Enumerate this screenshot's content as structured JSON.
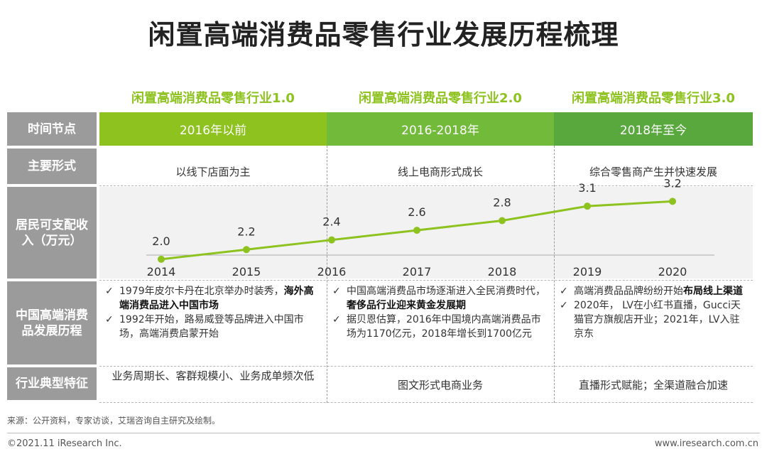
{
  "title": "闲置高端消费品零售行业发展历程梳理",
  "eras": [
    {
      "label": "闲置高端消费品零售行业1.0",
      "period": "2016年以前",
      "form": "以线下店面为主",
      "feature": "业务周期长、客群规模小、业务成单频次低"
    },
    {
      "label": "闲置高端消费品零售行业2.0",
      "period": "2016-2018年",
      "form": "线上电商形式成长",
      "feature": "图文形式电商业务"
    },
    {
      "label": "闲置高端消费品零售行业3.0",
      "period": "2018年至今",
      "form": "综合零售商产生并快速发展",
      "feature": "直播形式赋能；全渠道融合加速"
    }
  ],
  "row_labels": {
    "time": "时间节点",
    "form": "主要形式",
    "income_line1": "居民可支配收",
    "income_line2": "入（万元）",
    "history_line1": "中国高端消费",
    "history_line2": "品发展历程",
    "feature": "行业典型特征"
  },
  "colors": {
    "era1": "#8dc21f",
    "era2": "#72bb3a",
    "era3": "#58a83d",
    "line": "#8dc21f",
    "label_bg": "#9b9b9b"
  },
  "chart_data": {
    "type": "line",
    "x": [
      "2014",
      "2015",
      "2016",
      "2017",
      "2018",
      "2019",
      "2020"
    ],
    "series": [
      {
        "values": [
          2.0,
          2.2,
          2.4,
          2.6,
          2.8,
          3.1,
          3.2
        ]
      }
    ],
    "value_labels": [
      "2.0",
      "2.2",
      "2.4",
      "2.6",
      "2.8",
      "3.1",
      "3.2"
    ],
    "ylim": [
      1.6,
      3.5
    ],
    "grid": false
  },
  "history": {
    "col1": [
      {
        "text": "1979年皮尔卡丹在北京举办时装秀，",
        "bold": "海外高端消费品进入中国市场"
      },
      {
        "text": "1992年开始，路易威登等品牌进入中国市场，高端消费启蒙开始",
        "bold": ""
      }
    ],
    "col2": [
      {
        "text": "中国高端消费品市场逐渐进入全民消费时代，",
        "bold": "奢侈品行业迎来黄金发展期"
      },
      {
        "text": "据贝恩估算，2016年中国境内高端消费品市场为1170亿元，2018年增长到1700亿元",
        "bold": ""
      }
    ],
    "col3": [
      {
        "text": "高端消费品品牌纷纷开始",
        "bold": "布局线上渠道"
      },
      {
        "text": "2020年， LV在小红书直播，Gucci天猫官方旗舰店开业；2021年，LV入驻京东",
        "bold": ""
      }
    ]
  },
  "check_mark": "✓",
  "source": "来源：公开资料，专家访谈，艾瑞咨询自主研究及绘制。",
  "footer_left": "©2021.11 iResearch Inc.",
  "footer_right": "www.iresearch.com.cn"
}
